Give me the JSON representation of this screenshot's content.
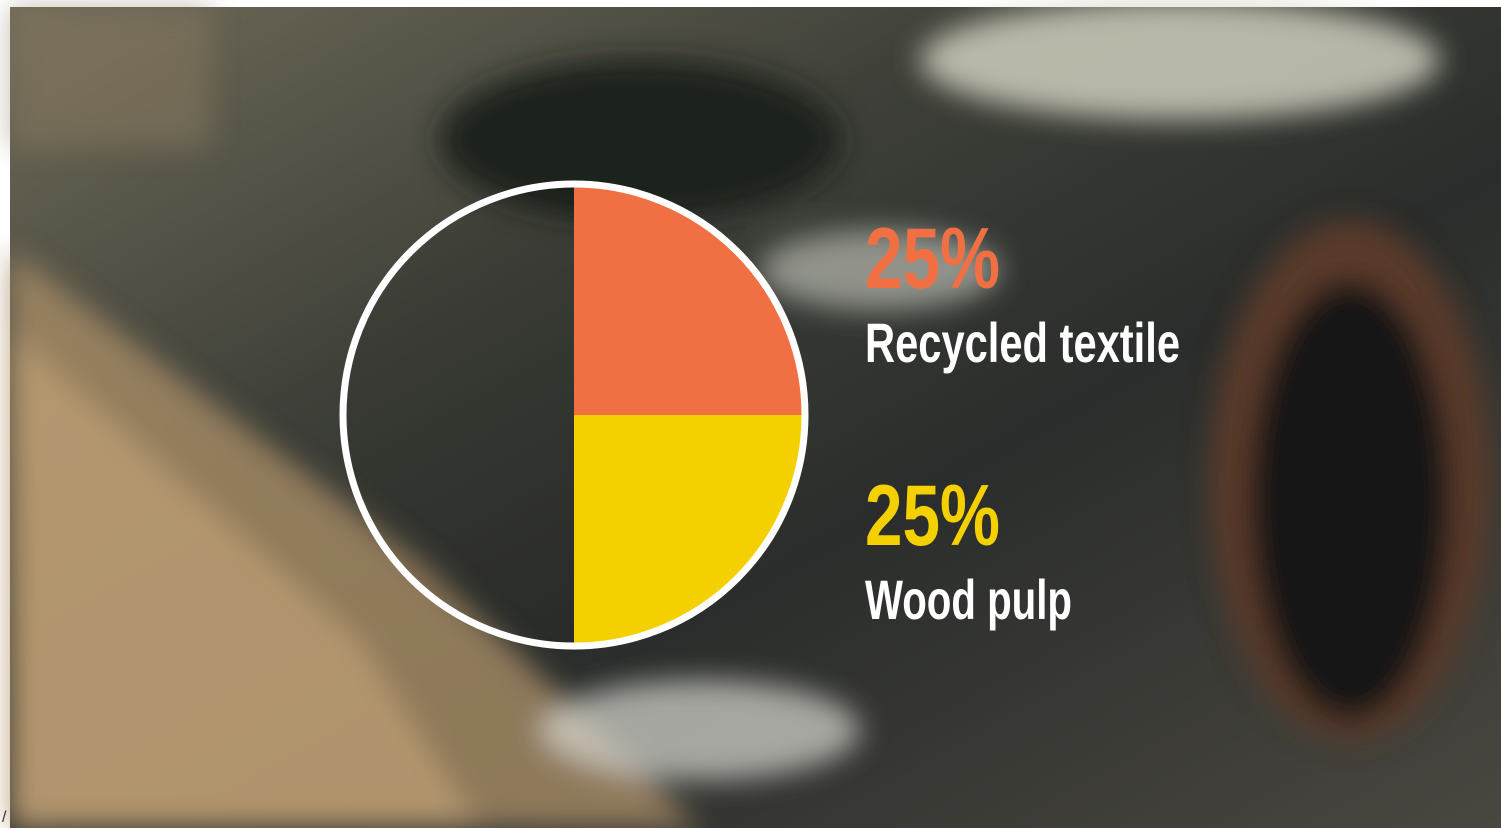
{
  "chart_data": {
    "type": "pie",
    "categories": [
      "Recycled textile",
      "Wood pulp"
    ],
    "values": [
      25,
      25
    ],
    "value_labels": [
      "25%",
      "25%"
    ],
    "colors": [
      "#f07043",
      "#f5d000"
    ]
  },
  "corner_text": "/"
}
